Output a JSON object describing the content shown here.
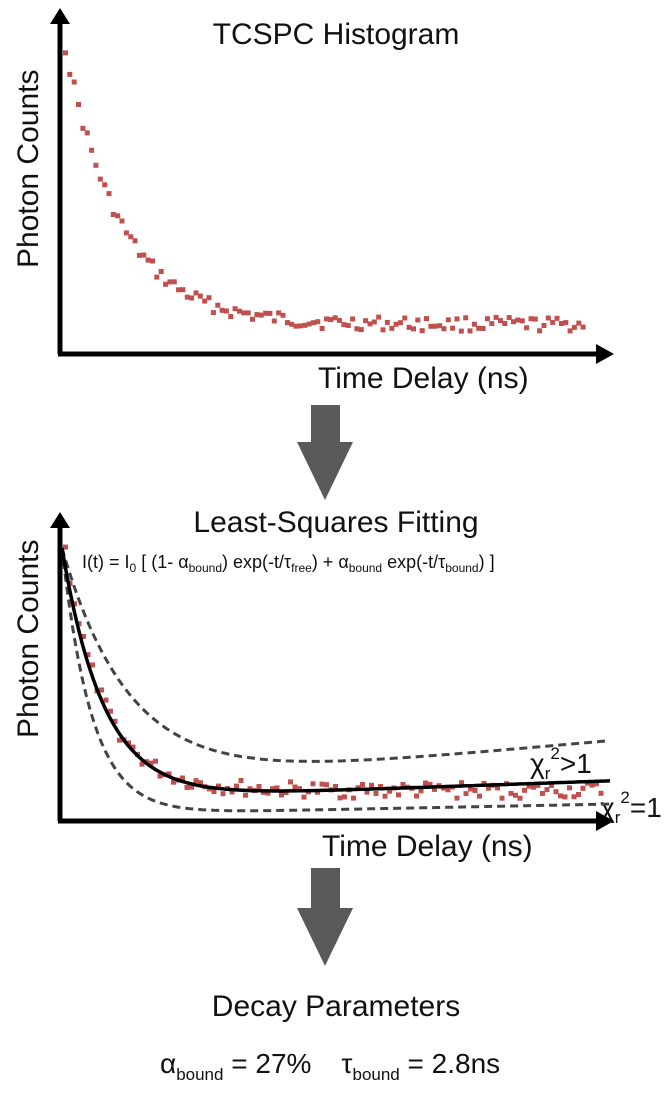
{
  "panel1": {
    "title": "TCSPC Histogram",
    "xlabel": "Time Delay (ns)",
    "ylabel": "Photon Counts"
  },
  "panel2": {
    "title": "Least-Squares Fitting",
    "xlabel": "Time Delay (ns)",
    "ylabel": "Photon Counts",
    "formula": {
      "lhs": "I(t) = I",
      "i0_sub": "0",
      "part1": " [ (1- α",
      "sub_bound": "bound",
      "part2": ") exp(-t/τ",
      "sub_free": "free",
      "part3": ") + α",
      "part4": " exp(-t/τ",
      "part5": ") ]"
    },
    "chi_upper": {
      "chi": "χ",
      "sub": "r",
      "sup": "2",
      "rel": ">1"
    },
    "chi_fit": {
      "chi": "χ",
      "sub": "r",
      "sup": "2",
      "rel": "=1"
    }
  },
  "panel3": {
    "title": "Decay Parameters",
    "alpha_symbol": "α",
    "alpha_sub": "bound",
    "alpha_value": " = 27%",
    "tau_symbol": "τ",
    "tau_sub": "bound",
    "tau_value": " = 2.8ns"
  },
  "colors": {
    "points": "#c0504d",
    "axis": "#000000",
    "arrow": "#5a5a5a",
    "fit": "#000000",
    "bound": "#444444"
  }
}
